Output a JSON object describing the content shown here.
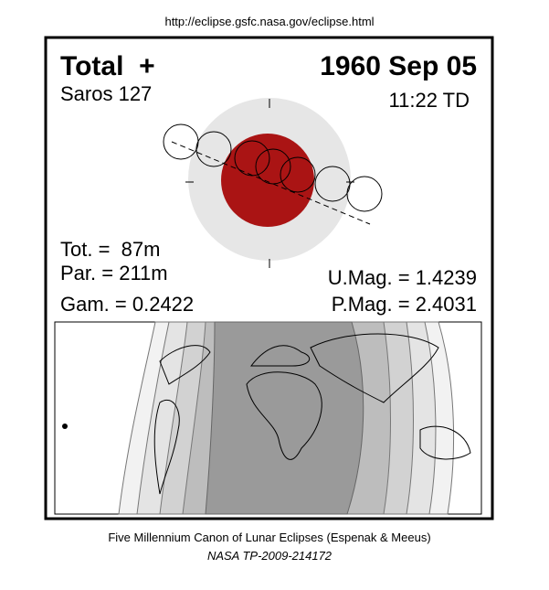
{
  "header": {
    "url": "http://eclipse.gsfc.nasa.gov/eclipse.html"
  },
  "eclipse": {
    "type": "Total  +",
    "date": "1960 Sep 05",
    "saros": "Saros 127",
    "time": "11:22 TD",
    "total_duration": "Tot. =  87m",
    "partial_duration": "Par. = 211m",
    "gamma": "Gam. = 0.2422",
    "umbral_magnitude": "U.Mag. = 1.4239",
    "penumbral_magnitude": "P.Mag. = 2.4031"
  },
  "footer": {
    "canon": "Five Millennium Canon of Lunar Eclipses (Espenak & Meeus)",
    "publication": "NASA TP-2009-214172"
  }
}
